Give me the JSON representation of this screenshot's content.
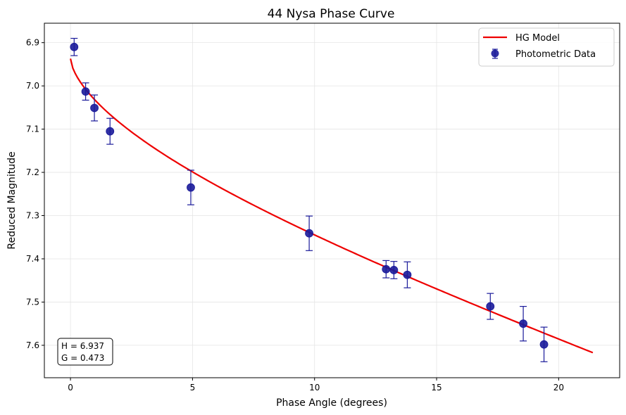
{
  "chart_data": {
    "type": "scatter",
    "title": "44 Nysa Phase Curve",
    "xlabel": "Phase Angle (degrees)",
    "ylabel": "Reduced Magnitude",
    "xlim": [
      -1.07,
      22.5
    ],
    "ylim": [
      7.675,
      6.855
    ],
    "y_inverted": true,
    "grid": true,
    "legend_position": "top-right",
    "x_ticks": [
      0,
      5,
      10,
      15,
      20
    ],
    "x_tick_labels": [
      "0",
      "5",
      "10",
      "15",
      "20"
    ],
    "y_ticks": [
      6.9,
      7.0,
      7.1,
      7.2,
      7.3,
      7.4,
      7.5,
      7.6
    ],
    "y_tick_labels": [
      "6.9",
      "7.0",
      "7.1",
      "7.2",
      "7.3",
      "7.4",
      "7.5",
      "7.6"
    ],
    "series": [
      {
        "name": "HG Model",
        "kind": "line",
        "color": "#ee0000",
        "H": 6.937,
        "G": 0.473,
        "x_range": [
          0,
          21.4
        ]
      },
      {
        "name": "Photometric Data",
        "kind": "errorbar-scatter",
        "color": "#1a1a9a",
        "points": [
          {
            "x": 0.15,
            "y": 6.91,
            "err": 0.02
          },
          {
            "x": 0.62,
            "y": 7.013,
            "err": 0.02
          },
          {
            "x": 0.98,
            "y": 7.051,
            "err": 0.03
          },
          {
            "x": 1.62,
            "y": 7.105,
            "err": 0.03
          },
          {
            "x": 4.93,
            "y": 7.235,
            "err": 0.04
          },
          {
            "x": 9.78,
            "y": 7.341,
            "err": 0.04
          },
          {
            "x": 12.93,
            "y": 7.424,
            "err": 0.02
          },
          {
            "x": 13.25,
            "y": 7.426,
            "err": 0.02
          },
          {
            "x": 13.8,
            "y": 7.437,
            "err": 0.03
          },
          {
            "x": 17.2,
            "y": 7.51,
            "err": 0.03
          },
          {
            "x": 18.55,
            "y": 7.55,
            "err": 0.04
          },
          {
            "x": 19.4,
            "y": 7.598,
            "err": 0.04
          }
        ]
      }
    ],
    "annotation": {
      "lines": [
        "H = 6.937",
        "G = 0.473"
      ],
      "position": "bottom-left"
    }
  }
}
